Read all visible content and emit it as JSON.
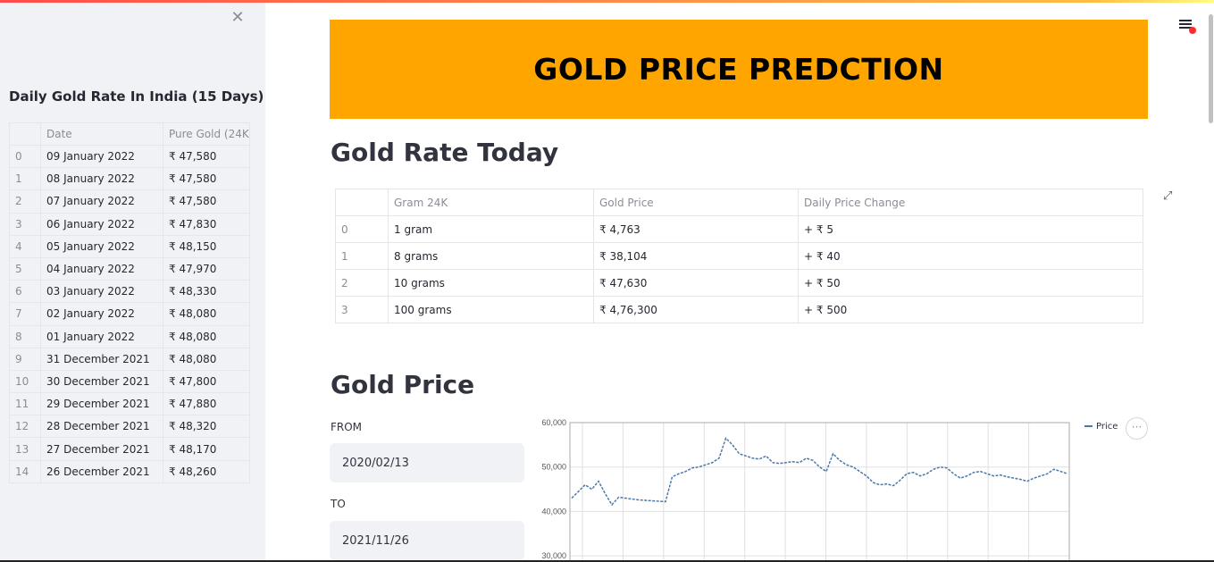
{
  "sidebar": {
    "close_icon": "close-icon",
    "title": "Daily Gold Rate In India (15 Days)",
    "columns": [
      "",
      "Date",
      "Pure Gold (24K"
    ],
    "rows": [
      [
        "0",
        "09 January 2022",
        "₹ 47,580"
      ],
      [
        "1",
        "08 January 2022",
        "₹ 47,580"
      ],
      [
        "2",
        "07 January 2022",
        "₹ 47,580"
      ],
      [
        "3",
        "06 January 2022",
        "₹ 47,830"
      ],
      [
        "4",
        "05 January 2022",
        "₹ 48,150"
      ],
      [
        "5",
        "04 January 2022",
        "₹ 47,970"
      ],
      [
        "6",
        "03 January 2022",
        "₹ 48,330"
      ],
      [
        "7",
        "02 January 2022",
        "₹ 48,080"
      ],
      [
        "8",
        "01 January 2022",
        "₹ 48,080"
      ],
      [
        "9",
        "31 December 2021",
        "₹ 48,080"
      ],
      [
        "10",
        "30 December 2021",
        "₹ 47,800"
      ],
      [
        "11",
        "29 December 2021",
        "₹ 47,880"
      ],
      [
        "12",
        "28 December 2021",
        "₹ 48,320"
      ],
      [
        "13",
        "27 December 2021",
        "₹ 48,170"
      ],
      [
        "14",
        "26 December 2021",
        "₹ 48,260"
      ]
    ]
  },
  "header": {
    "banner_title": "GOLD PRICE PREDCTION",
    "menu_icon": "hamburger-menu-icon"
  },
  "rate_today": {
    "heading": "Gold Rate Today",
    "columns": [
      "",
      "Gram 24K",
      "Gold Price",
      "Daily Price Change"
    ],
    "rows": [
      [
        "0",
        "1 gram",
        "₹ 4,763",
        "+ ₹ 5"
      ],
      [
        "1",
        "8 grams",
        "₹ 38,104",
        "+ ₹ 40"
      ],
      [
        "2",
        "10 grams",
        "₹ 47,630",
        "+ ₹ 50"
      ],
      [
        "3",
        "100 grams",
        "₹ 4,76,300",
        "+ ₹ 500"
      ]
    ]
  },
  "gold_price": {
    "heading": "Gold Price",
    "from_label": "FROM",
    "from_value": "2020/02/13",
    "to_label": "TO",
    "to_value": "2021/11/26",
    "more_label": "···"
  },
  "chart_data": {
    "type": "line",
    "series": [
      {
        "name": "Price",
        "values": [
          43000,
          44500,
          46000,
          45000,
          46800,
          44000,
          41500,
          43200,
          43000,
          42800,
          42600,
          42500,
          42400,
          42300,
          42200,
          47800,
          48500,
          49000,
          49800,
          50000,
          50500,
          51000,
          52000,
          56500,
          55000,
          53000,
          52500,
          52000,
          51800,
          52500,
          51000,
          50800,
          51000,
          51200,
          51000,
          52000,
          51500,
          50000,
          49000,
          53000,
          51500,
          50500,
          50000,
          49000,
          48000,
          46500,
          46000,
          46200,
          45800,
          47000,
          48500,
          48800,
          48000,
          48500,
          49500,
          50000,
          49800,
          48500,
          47500,
          48000,
          48800,
          49000,
          48500,
          48000,
          48200,
          47800,
          47500,
          47200,
          46800,
          47500,
          48000,
          48500,
          49500,
          49000,
          48500
        ]
      }
    ],
    "ylim": [
      25000,
      60000
    ],
    "yticks": [
      "60,000",
      "50,000",
      "40,000",
      "30,000"
    ],
    "legend": "Price",
    "legend_position": "top-right",
    "color": "#4c78a8",
    "grid": true
  }
}
